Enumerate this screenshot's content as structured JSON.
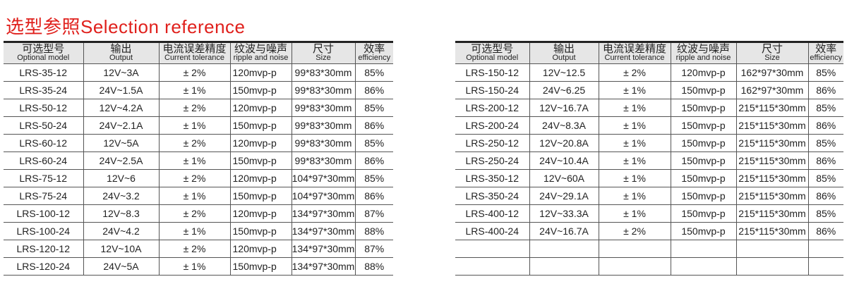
{
  "title": "选型参照Selection reference",
  "headers": [
    {
      "cn": "可选型号",
      "en": "Optional model"
    },
    {
      "cn": "输出",
      "en": "Output"
    },
    {
      "cn": "电流误差精度",
      "en": "Current tolerance"
    },
    {
      "cn": "纹波与噪声",
      "en": "ripple and noise"
    },
    {
      "cn": "尺寸",
      "en": "Size"
    },
    {
      "cn": "效率",
      "en": "efficiency"
    }
  ],
  "left_rows": [
    [
      "LRS-35-12",
      "12V~3A",
      "± 2%",
      "120mvp-p",
      "99*83*30mm",
      "85%"
    ],
    [
      "LRS-35-24",
      "24V~1.5A",
      "± 1%",
      "150mvp-p",
      "99*83*30mm",
      "86%"
    ],
    [
      "LRS-50-12",
      "12V~4.2A",
      "± 2%",
      "120mvp-p",
      "99*83*30mm",
      "85%"
    ],
    [
      "LRS-50-24",
      "24V~2.1A",
      "± 1%",
      "150mvp-p",
      "99*83*30mm",
      "86%"
    ],
    [
      "LRS-60-12",
      "12V~5A",
      "± 2%",
      "120mvp-p",
      "99*83*30mm",
      "85%"
    ],
    [
      "LRS-60-24",
      "24V~2.5A",
      "± 1%",
      "150mvp-p",
      "99*83*30mm",
      "86%"
    ],
    [
      "LRS-75-12",
      "12V~6",
      "± 2%",
      "120mvp-p",
      "104*97*30mm",
      "85%"
    ],
    [
      "LRS-75-24",
      "24V~3.2",
      "± 1%",
      "150mvp-p",
      "104*97*30mm",
      "86%"
    ],
    [
      "LRS-100-12",
      "12V~8.3",
      "± 2%",
      "120mvp-p",
      "134*97*30mm",
      "87%"
    ],
    [
      "LRS-100-24",
      "24V~4.2",
      "± 1%",
      "150mvp-p",
      "134*97*30mm",
      "88%"
    ],
    [
      "LRS-120-12",
      "12V~10A",
      "± 2%",
      "120mvp-p",
      "134*97*30mm",
      "87%"
    ],
    [
      "LRS-120-24",
      "24V~5A",
      "± 1%",
      "150mvp-p",
      "134*97*30mm",
      "88%"
    ]
  ],
  "right_rows": [
    [
      "LRS-150-12",
      "12V~12.5",
      "± 2%",
      "120mvp-p",
      "162*97*30mm",
      "85%"
    ],
    [
      "LRS-150-24",
      "24V~6.25",
      "± 1%",
      "150mvp-p",
      "162*97*30mm",
      "86%"
    ],
    [
      "LRS-200-12",
      "12V~16.7A",
      "± 1%",
      "150mvp-p",
      "215*115*30mm",
      "85%"
    ],
    [
      "LRS-200-24",
      "24V~8.3A",
      "± 1%",
      "150mvp-p",
      "215*115*30mm",
      "86%"
    ],
    [
      "LRS-250-12",
      "12V~20.8A",
      "± 1%",
      "150mvp-p",
      "215*115*30mm",
      "85%"
    ],
    [
      "LRS-250-24",
      "24V~10.4A",
      "± 1%",
      "150mvp-p",
      "215*115*30mm",
      "86%"
    ],
    [
      "LRS-350-12",
      "12V~60A",
      "± 1%",
      "150mvp-p",
      "215*115*30mm",
      "85%"
    ],
    [
      "LRS-350-24",
      "24V~29.1A",
      "± 1%",
      "150mvp-p",
      "215*115*30mm",
      "86%"
    ],
    [
      "LRS-400-12",
      "12V~33.3A",
      "± 1%",
      "150mvp-p",
      "215*115*30mm",
      "85%"
    ],
    [
      "LRS-400-24",
      "24V~16.7A",
      "± 2%",
      "150mvp-p",
      "215*115*30mm",
      "86%"
    ],
    [
      "",
      "",
      "",
      "",
      "",
      ""
    ],
    [
      "",
      "",
      "",
      "",
      "",
      ""
    ]
  ]
}
